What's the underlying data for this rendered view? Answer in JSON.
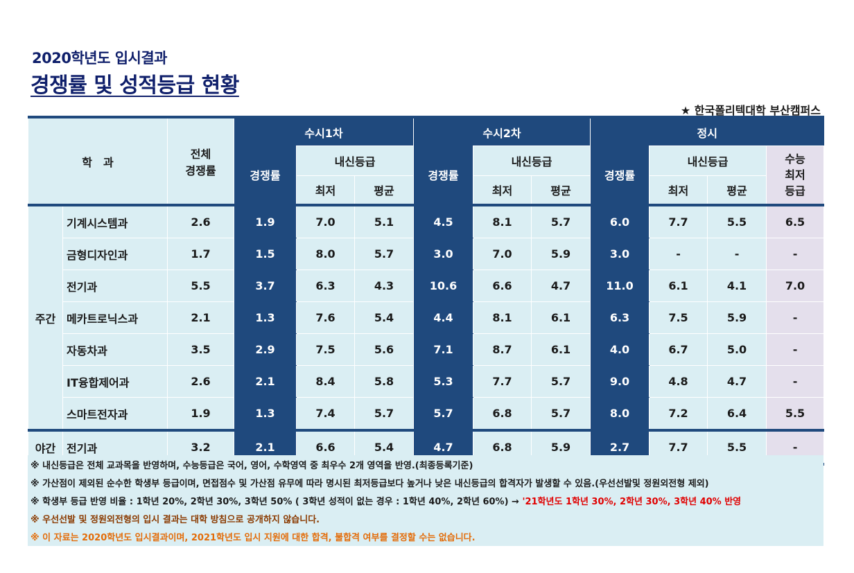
{
  "header": {
    "year_title": "2020학년도 입시결과",
    "main_title": "경쟁률 및 성적등급 현황",
    "campus": "★ 한국폴리텍대학 부산캠퍼스"
  },
  "table": {
    "col_dept": "학　과",
    "col_total": "전체\n경쟁률",
    "group_susi1": "수시1차",
    "group_susi2": "수시2차",
    "group_jeongsi": "정시",
    "sub_competition": "경쟁률",
    "sub_naesin": "내신등급",
    "sub_min": "최저",
    "sub_avg": "평균",
    "sub_suneung": "수능\n최저\n등급",
    "sections": [
      {
        "label": "주간",
        "rows": [
          {
            "dept": "기계시스템과",
            "total": "2.6",
            "s1_comp": "1.9",
            "s1_min": "7.0",
            "s1_avg": "5.1",
            "s2_comp": "4.5",
            "s2_min": "8.1",
            "s2_avg": "5.7",
            "j_comp": "6.0",
            "j_min": "7.7",
            "j_avg": "5.5",
            "j_sn": "6.5"
          },
          {
            "dept": "금형디자인과",
            "total": "1.7",
            "s1_comp": "1.5",
            "s1_min": "8.0",
            "s1_avg": "5.7",
            "s2_comp": "3.0",
            "s2_min": "7.0",
            "s2_avg": "5.9",
            "j_comp": "3.0",
            "j_min": "-",
            "j_avg": "-",
            "j_sn": "-"
          },
          {
            "dept": "전기과",
            "total": "5.5",
            "s1_comp": "3.7",
            "s1_min": "6.3",
            "s1_avg": "4.3",
            "s2_comp": "10.6",
            "s2_min": "6.6",
            "s2_avg": "4.7",
            "j_comp": "11.0",
            "j_min": "6.1",
            "j_avg": "4.1",
            "j_sn": "7.0"
          },
          {
            "dept": "메카트로닉스과",
            "total": "2.1",
            "s1_comp": "1.3",
            "s1_min": "7.6",
            "s1_avg": "5.4",
            "s2_comp": "4.4",
            "s2_min": "8.1",
            "s2_avg": "6.1",
            "j_comp": "6.3",
            "j_min": "7.5",
            "j_avg": "5.9",
            "j_sn": "-"
          },
          {
            "dept": "자동차과",
            "total": "3.5",
            "s1_comp": "2.9",
            "s1_min": "7.5",
            "s1_avg": "5.6",
            "s2_comp": "7.1",
            "s2_min": "8.7",
            "s2_avg": "6.1",
            "j_comp": "4.0",
            "j_min": "6.7",
            "j_avg": "5.0",
            "j_sn": "-"
          },
          {
            "dept": "IT융합제어과",
            "total": "2.6",
            "s1_comp": "2.1",
            "s1_min": "8.4",
            "s1_avg": "5.8",
            "s2_comp": "5.3",
            "s2_min": "7.7",
            "s2_avg": "5.7",
            "j_comp": "9.0",
            "j_min": "4.8",
            "j_avg": "4.7",
            "j_sn": "-"
          },
          {
            "dept": "스마트전자과",
            "total": "1.9",
            "s1_comp": "1.3",
            "s1_min": "7.4",
            "s1_avg": "5.7",
            "s2_comp": "5.7",
            "s2_min": "6.8",
            "s2_avg": "5.7",
            "j_comp": "8.0",
            "j_min": "7.2",
            "j_avg": "6.4",
            "j_sn": "5.5"
          }
        ]
      },
      {
        "label": "야간",
        "rows": [
          {
            "dept": "전기과",
            "total": "3.2",
            "s1_comp": "2.1",
            "s1_min": "6.6",
            "s1_avg": "5.4",
            "s2_comp": "4.7",
            "s2_min": "6.8",
            "s2_avg": "5.9",
            "j_comp": "2.7",
            "j_min": "7.7",
            "j_avg": "5.5",
            "j_sn": "-"
          }
        ]
      }
    ]
  },
  "notes": {
    "n1": "※ 내신등급은 전체 교과목을 반영하며, 수능등급은 국어, 영어, 수학영역 중 최우수 2개 영역을 반영.(최종등록기준)",
    "n2": "※ 가산점이 제외된 순수한 학생부 등급이며, 면접점수 및 가산점 유무에 따라 명시된 최저등급보다 높거나 낮은 내신등급의 합격자가 발생할 수 있음.(우선선발및 정원외전형 제외)",
    "n3a": "※ 학생부 등급 반영 비율 : 1학년 20%, 2학년 30%, 3학년 50% ( 3학년 성적이 없는 경우 : 1학년 40%, 2학년 60%) → ",
    "n3b": "'21학년도 1학년 30%, 2학년 30%, 3학년 40% 반영",
    "n4": "※ 우선선발 및 정원외전형의 입시 결과는 대학 방침으로 공개하지 않습니다.",
    "n5": "※ 이 자료는 2020학년도 입시결과이며, 2021학년도 입시 지원에 대한 합격, 불합격 여부를 결정할 수는 없습니다."
  }
}
